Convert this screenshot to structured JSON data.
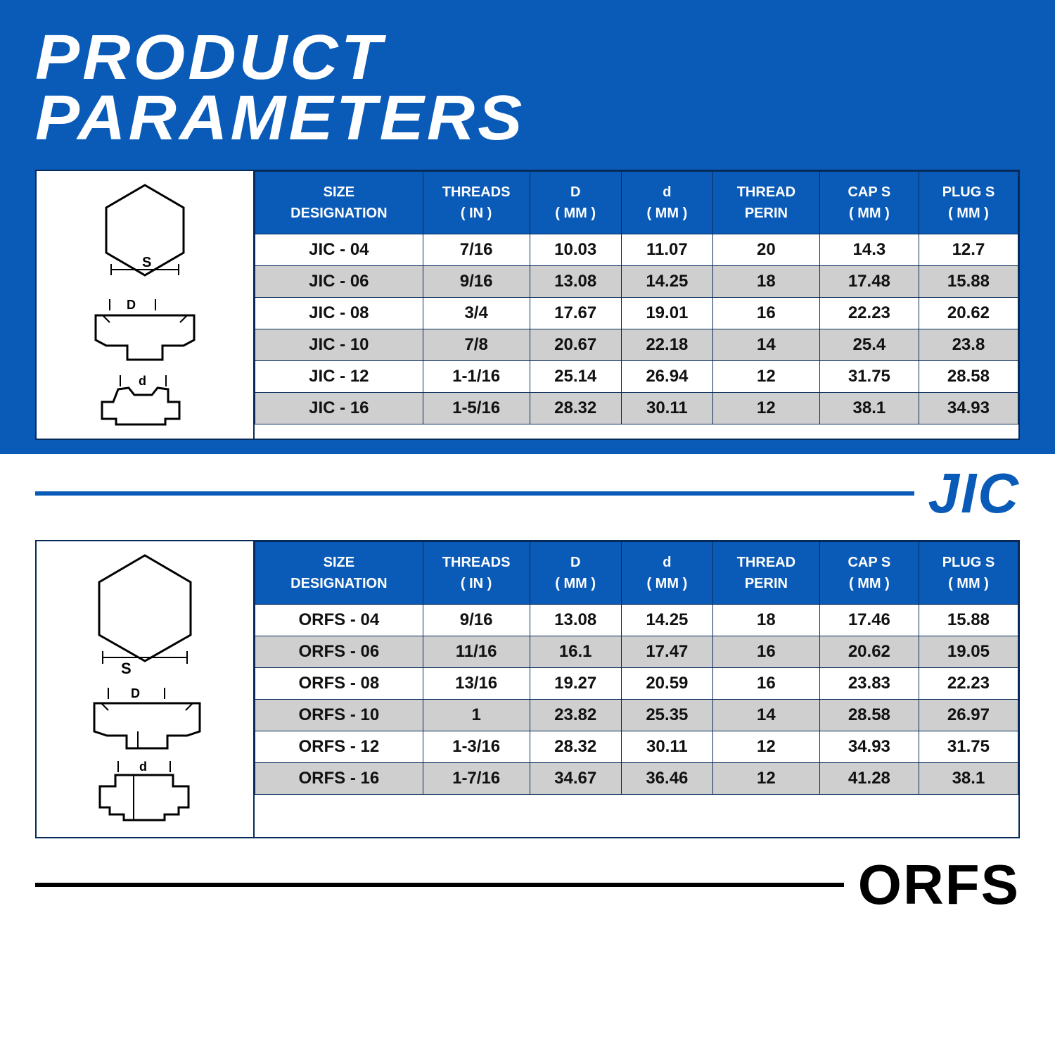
{
  "colors": {
    "brand": "#0a5bb8",
    "header_bg": "#0a5bb8",
    "row_alt": "#cfcfcf",
    "text": "#111111",
    "white": "#ffffff",
    "black": "#000000"
  },
  "title_line1": "PRODUCT",
  "title_line2": "PARAMETERS",
  "jic": {
    "label": "JIC",
    "columns": [
      {
        "h1": "SIZE",
        "h2": "DESIGNATION"
      },
      {
        "h1": "THREADS",
        "h2": "( IN )"
      },
      {
        "h1": "D",
        "h2": "( MM )"
      },
      {
        "h1": "d",
        "h2": "( MM )"
      },
      {
        "h1": "THREAD",
        "h2": "PERIN"
      },
      {
        "h1": "CAP S",
        "h2": "( MM )"
      },
      {
        "h1": "PLUG S",
        "h2": "( MM )"
      }
    ],
    "rows": [
      [
        "JIC - 04",
        "7/16",
        "10.03",
        "11.07",
        "20",
        "14.3",
        "12.7"
      ],
      [
        "JIC - 06",
        "9/16",
        "13.08",
        "14.25",
        "18",
        "17.48",
        "15.88"
      ],
      [
        "JIC - 08",
        "3/4",
        "17.67",
        "19.01",
        "16",
        "22.23",
        "20.62"
      ],
      [
        "JIC - 10",
        "7/8",
        "20.67",
        "22.18",
        "14",
        "25.4",
        "23.8"
      ],
      [
        "JIC - 12",
        "1-1/16",
        "25.14",
        "26.94",
        "12",
        "31.75",
        "28.58"
      ],
      [
        "JIC - 16",
        "1-5/16",
        "28.32",
        "30.11",
        "12",
        "38.1",
        "34.93"
      ]
    ],
    "diagram": {
      "labels": {
        "S": "S",
        "D": "D",
        "d": "d"
      }
    }
  },
  "orfs": {
    "label": "ORFS",
    "columns": [
      {
        "h1": "SIZE",
        "h2": "DESIGNATION"
      },
      {
        "h1": "THREADS",
        "h2": "( IN )"
      },
      {
        "h1": "D",
        "h2": "( MM )"
      },
      {
        "h1": "d",
        "h2": "( MM )"
      },
      {
        "h1": "THREAD",
        "h2": "PERIN"
      },
      {
        "h1": "CAP S",
        "h2": "( MM )"
      },
      {
        "h1": "PLUG S",
        "h2": "( MM )"
      }
    ],
    "rows": [
      [
        "ORFS - 04",
        "9/16",
        "13.08",
        "14.25",
        "18",
        "17.46",
        "15.88"
      ],
      [
        "ORFS - 06",
        "11/16",
        "16.1",
        "17.47",
        "16",
        "20.62",
        "19.05"
      ],
      [
        "ORFS - 08",
        "13/16",
        "19.27",
        "20.59",
        "16",
        "23.83",
        "22.23"
      ],
      [
        "ORFS - 10",
        "1",
        "23.82",
        "25.35",
        "14",
        "28.58",
        "26.97"
      ],
      [
        "ORFS - 12",
        "1-3/16",
        "28.32",
        "30.11",
        "12",
        "34.93",
        "31.75"
      ],
      [
        "ORFS - 16",
        "1-7/16",
        "34.67",
        "36.46",
        "12",
        "41.28",
        "38.1"
      ]
    ],
    "diagram": {
      "labels": {
        "S": "S",
        "D": "D",
        "d": "d"
      }
    }
  },
  "table_style": {
    "header_fontsize": 20,
    "cell_fontsize": 24,
    "font_weight": 700,
    "border_color": "#062a5a",
    "col_widths_pct": [
      22,
      14,
      12,
      12,
      14,
      13,
      13
    ]
  }
}
